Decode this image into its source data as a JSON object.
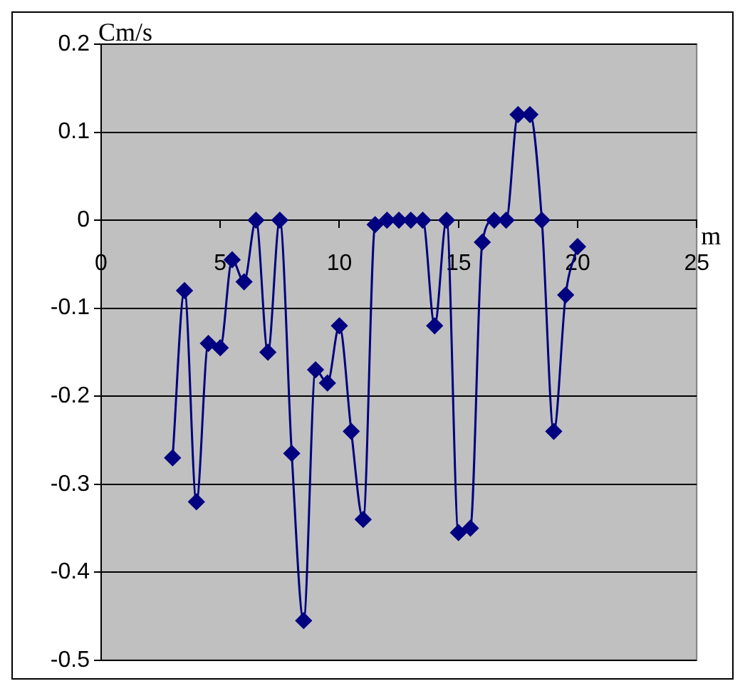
{
  "chart_data": {
    "type": "line",
    "xlabel": "m",
    "ylabel": "Cm/s",
    "x": [
      3,
      3.5,
      4,
      4.5,
      5,
      5.5,
      6,
      6.5,
      7,
      7.5,
      8,
      8.5,
      9,
      9.5,
      10,
      10.5,
      11,
      11.5,
      12,
      12.5,
      13,
      13.5,
      14,
      14.5,
      15,
      15.5,
      16,
      16.5,
      17,
      17.5,
      18,
      18.5,
      19,
      19.5,
      20
    ],
    "series": [
      {
        "color": "#000080",
        "values": [
          -0.27,
          -0.08,
          -0.32,
          -0.14,
          -0.145,
          -0.045,
          -0.07,
          0,
          -0.15,
          0,
          -0.265,
          -0.455,
          -0.17,
          -0.185,
          -0.12,
          -0.24,
          -0.34,
          -0.005,
          0,
          0,
          0,
          0,
          -0.12,
          0,
          -0.355,
          -0.35,
          -0.025,
          0,
          0,
          0.12,
          0.12,
          0,
          -0.24,
          -0.085,
          -0.03
        ]
      }
    ],
    "xlim": [
      0,
      25
    ],
    "xticks": [
      0,
      5,
      10,
      15,
      20,
      25
    ],
    "ylim": [
      -0.5,
      0.2
    ],
    "yticks": [
      -0.5,
      -0.4,
      -0.3,
      -0.2,
      -0.1,
      0,
      0.1,
      0.2
    ],
    "grid": "y",
    "legend": false,
    "marker": "diamond",
    "line_style": "solid"
  }
}
